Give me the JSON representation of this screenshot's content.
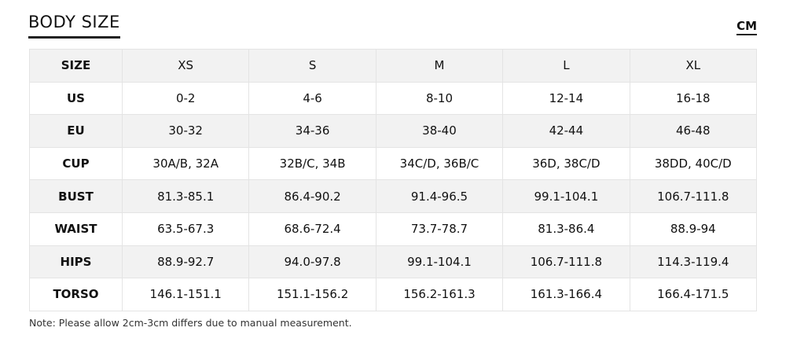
{
  "header": {
    "title": "BODY SIZE",
    "unit": "CM"
  },
  "table": {
    "columns": [
      "SIZE",
      "XS",
      "S",
      "M",
      "L",
      "XL"
    ],
    "rows": [
      [
        "US",
        "0-2",
        "4-6",
        "8-10",
        "12-14",
        "16-18"
      ],
      [
        "EU",
        "30-32",
        "34-36",
        "38-40",
        "42-44",
        "46-48"
      ],
      [
        "CUP",
        "30A/B, 32A",
        "32B/C, 34B",
        "34C/D, 36B/C",
        "36D, 38C/D",
        "38DD, 40C/D"
      ],
      [
        "BUST",
        "81.3-85.1",
        "86.4-90.2",
        "91.4-96.5",
        "99.1-104.1",
        "106.7-111.8"
      ],
      [
        "WAIST",
        "63.5-67.3",
        "68.6-72.4",
        "73.7-78.7",
        "81.3-86.4",
        "88.9-94"
      ],
      [
        "HIPS",
        "88.9-92.7",
        "94.0-97.8",
        "99.1-104.1",
        "106.7-111.8",
        "114.3-119.4"
      ],
      [
        "TORSO",
        "146.1-151.1",
        "151.1-156.2",
        "156.2-161.3",
        "161.3-166.4",
        "166.4-171.5"
      ]
    ]
  },
  "note": "Note: Please allow 2cm-3cm differs due to manual measurement."
}
